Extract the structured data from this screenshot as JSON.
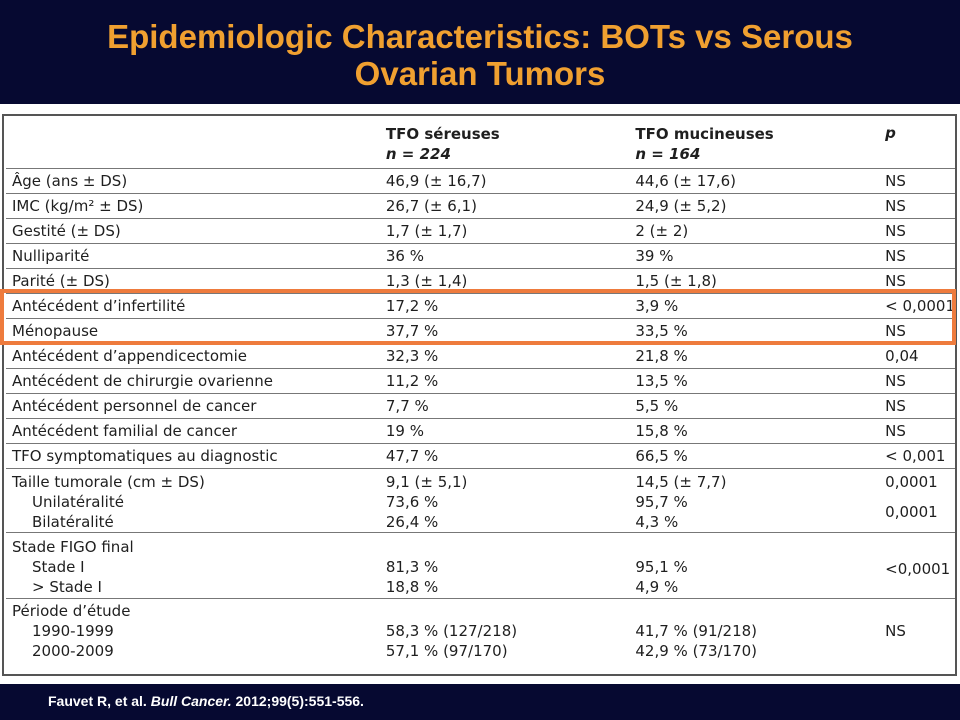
{
  "slide": {
    "title_line1": "Epidemiologic Characteristics: BOTs vs Serous",
    "title_line2": "Ovarian Tumors",
    "citation_authors": "Fauvet R, et al.",
    "citation_journal": "Bull Cancer.",
    "citation_ref": "2012;99(5):551-556."
  },
  "table": {
    "headers": {
      "col2_line1": "TFO séreuses",
      "col2_line2": "n = 224",
      "col3_line1": "TFO mucineuses",
      "col3_line2": "n = 164",
      "col4": "p"
    },
    "rows": [
      {
        "label": "Âge (ans ± DS)",
        "sereuses": "46,9 (± 16,7)",
        "mucineuses": "44,6 (± 17,6)",
        "p": "NS"
      },
      {
        "label": "IMC (kg/m² ± DS)",
        "sereuses": "26,7 (± 6,1)",
        "mucineuses": "24,9 (± 5,2)",
        "p": "NS"
      },
      {
        "label": "Gestité (± DS)",
        "sereuses": "1,7 (± 1,7)",
        "mucineuses": "2 (± 2)",
        "p": "NS"
      },
      {
        "label": "Nulliparité",
        "sereuses": "36 %",
        "mucineuses": "39 %",
        "p": "NS"
      },
      {
        "label": "Parité (± DS)",
        "sereuses": "1,3 (± 1,4)",
        "mucineuses": "1,5 (± 1,8)",
        "p": "NS"
      },
      {
        "label": "Antécédent d’infertilité",
        "sereuses": "17,2 %",
        "mucineuses": "3,9 %",
        "p": "< 0,0001"
      },
      {
        "label": "Ménopause",
        "sereuses": "37,7 %",
        "mucineuses": "33,5 %",
        "p": "NS"
      },
      {
        "label": "Antécédent d’appendicectomie",
        "sereuses": "32,3 %",
        "mucineuses": "21,8 %",
        "p": "0,04"
      },
      {
        "label": "Antécédent de chirurgie ovarienne",
        "sereuses": "11,2 %",
        "mucineuses": "13,5 %",
        "p": "NS"
      },
      {
        "label": "Antécédent personnel de cancer",
        "sereuses": "7,7 %",
        "mucineuses": "5,5 %",
        "p": "NS"
      },
      {
        "label": "Antécédent familial de cancer",
        "sereuses": "19 %",
        "mucineuses": "15,8 %",
        "p": "NS"
      },
      {
        "label": "TFO symptomatiques au diagnostic",
        "sereuses": "47,7 %",
        "mucineuses": "66,5 %",
        "p": "< 0,001"
      }
    ],
    "taille": {
      "label": "Taille tumorale (cm ± DS)",
      "sereuses": "9,1 (± 5,1)",
      "mucineuses": "14,5 (± 7,7)",
      "p": "0,0001",
      "uni_label": "Unilatéralité",
      "uni_sereuses": "73,6 %",
      "uni_mucineuses": "95,7 %",
      "bi_label": "Bilatéralité",
      "bi_sereuses": "26,4 %",
      "bi_mucineuses": "4,3 %",
      "lat_p": "0,0001"
    },
    "figo": {
      "label": "Stade FIGO final",
      "s1_label": "Stade I",
      "s1_sereuses": "81,3 %",
      "s1_mucineuses": "95,1 %",
      "s2_label": "> Stade I",
      "s2_sereuses": "18,8 %",
      "s2_mucineuses": "4,9 %",
      "p": "<0,0001"
    },
    "periode": {
      "label": "Période d’étude",
      "p1_label": "1990-1999",
      "p1_sereuses": "58,3 % (127/218)",
      "p1_mucineuses": "41,7 % (91/218)",
      "p2_label": "2000-2009",
      "p2_sereuses": "57,1 % (97/170)",
      "p2_mucineuses": "42,9 % (73/170)",
      "p": "NS"
    }
  },
  "colors": {
    "header_bg": "#060931",
    "title_text": "#f0a030",
    "highlight_border": "#ee7b3d"
  }
}
